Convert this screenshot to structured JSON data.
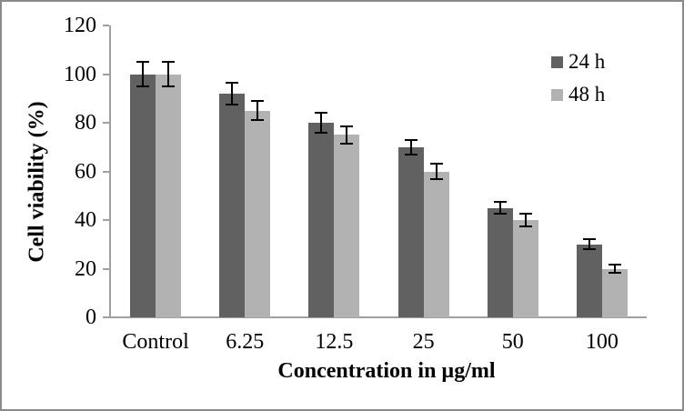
{
  "figure": {
    "background": "#ffffff",
    "border_color": "#8a8a8a"
  },
  "chart_data": {
    "type": "bar",
    "title": "",
    "xlabel": "Concentration in µg/ml",
    "ylabel": "Cell viability (%)",
    "categories": [
      "Control",
      "6.25",
      "12.5",
      "25",
      "50",
      "100"
    ],
    "series": [
      {
        "name": "24 h",
        "color": "#616161",
        "values": [
          100,
          92,
          80,
          70,
          45,
          30
        ],
        "errors": [
          5,
          4.5,
          4,
          3,
          2.5,
          2
        ]
      },
      {
        "name": "48 h",
        "color": "#b2b2b2",
        "values": [
          100,
          85,
          75,
          60,
          40,
          20
        ],
        "errors": [
          5,
          4,
          3.5,
          3,
          2.5,
          1.5
        ]
      }
    ],
    "ylim": [
      0,
      120
    ],
    "yticks": [
      0,
      20,
      40,
      60,
      80,
      100,
      120
    ],
    "grid": false,
    "legend_position": "top-right",
    "axis_color": "#a0a0a0",
    "error_bar_color": "#000000",
    "text_color": "#000000"
  }
}
